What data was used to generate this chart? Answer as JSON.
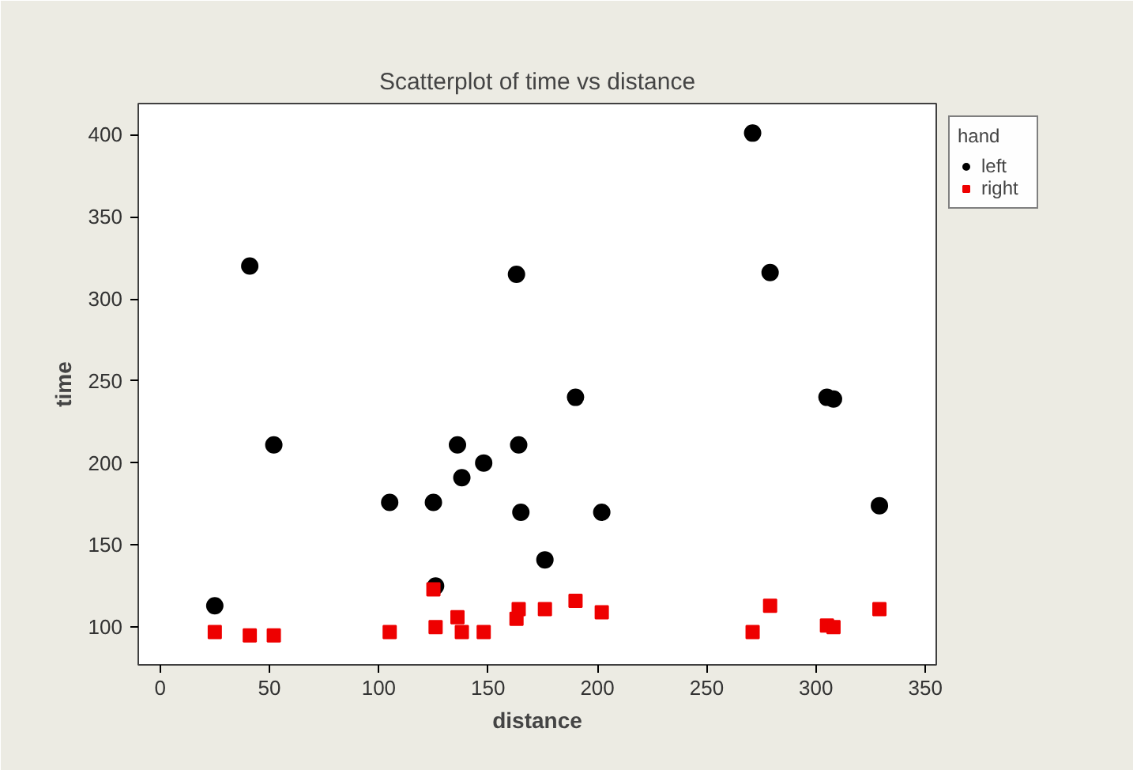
{
  "chart_data": {
    "type": "scatter",
    "title": "Scatterplot of time vs distance",
    "xlabel": "distance",
    "ylabel": "time",
    "legend_title": "hand",
    "legend": "top right",
    "grid": false,
    "xlim": [
      -10,
      355
    ],
    "xticks": [
      0,
      50,
      100,
      150,
      200,
      250,
      300,
      350
    ],
    "ylim": [
      77,
      419
    ],
    "yticks": [
      100,
      150,
      200,
      250,
      300,
      350,
      400
    ],
    "series": [
      {
        "name": "left",
        "color": "#000000",
        "marker": "circle",
        "x": [
          25,
          41,
          52,
          105,
          125,
          126,
          136,
          138,
          148,
          163,
          164,
          165,
          176,
          190,
          202,
          271,
          279,
          305,
          308,
          329
        ],
        "values": [
          113,
          320,
          211,
          176,
          176,
          125,
          211,
          191,
          200,
          315,
          211,
          170,
          141,
          240,
          170,
          401,
          316,
          240,
          239,
          174
        ]
      },
      {
        "name": "right",
        "color": "#ee0000",
        "marker": "square",
        "x": [
          25,
          41,
          52,
          105,
          125,
          126,
          136,
          138,
          148,
          163,
          164,
          176,
          190,
          202,
          271,
          279,
          305,
          308,
          329
        ],
        "values": [
          97,
          95,
          95,
          97,
          123,
          100,
          106,
          97,
          97,
          105,
          111,
          111,
          116,
          109,
          97,
          113,
          101,
          100,
          111
        ]
      }
    ]
  }
}
